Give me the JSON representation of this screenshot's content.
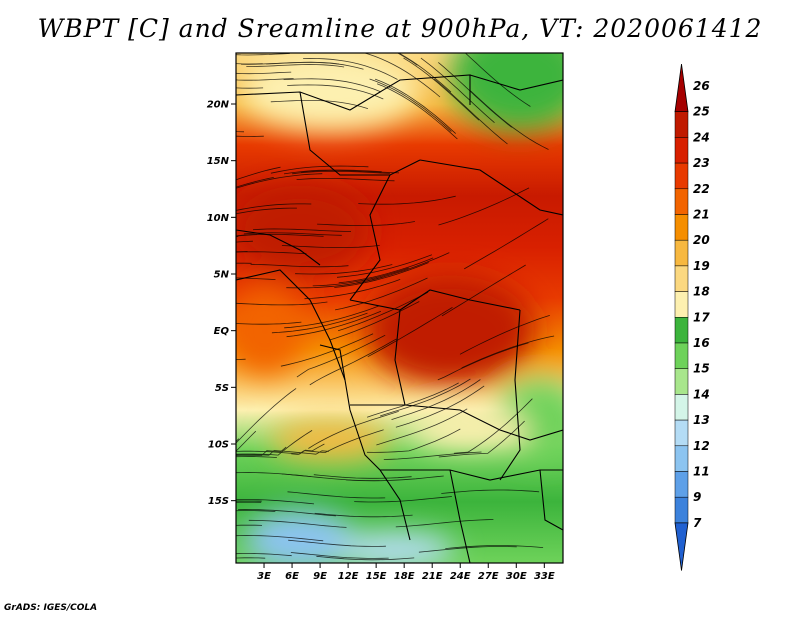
{
  "title": "WBPT [C] and Sreamline at 900hPa, VT: 2020061412",
  "credit": "GrADS: IGES/COLA",
  "map": {
    "lat_range": [
      -20.5,
      24.5
    ],
    "lon_range": [
      0,
      35
    ],
    "lat_ticks": [
      {
        "value": 20,
        "label": "20N"
      },
      {
        "value": 15,
        "label": "15N"
      },
      {
        "value": 10,
        "label": "10N"
      },
      {
        "value": 5,
        "label": "5N"
      },
      {
        "value": 0,
        "label": "EQ"
      },
      {
        "value": -5,
        "label": "5S"
      },
      {
        "value": -10,
        "label": "10S"
      },
      {
        "value": -15,
        "label": "15S"
      }
    ],
    "lon_ticks": [
      {
        "value": 3,
        "label": "3E"
      },
      {
        "value": 6,
        "label": "6E"
      },
      {
        "value": 9,
        "label": "9E"
      },
      {
        "value": 12,
        "label": "12E"
      },
      {
        "value": 15,
        "label": "15E"
      },
      {
        "value": 18,
        "label": "18E"
      },
      {
        "value": 21,
        "label": "21E"
      },
      {
        "value": 24,
        "label": "24E"
      },
      {
        "value": 27,
        "label": "27E"
      },
      {
        "value": 30,
        "label": "30E"
      },
      {
        "value": 33,
        "label": "33E"
      }
    ]
  },
  "colorbar": {
    "levels": [
      "26",
      "25",
      "24",
      "23",
      "22",
      "21",
      "20",
      "19",
      "18",
      "17",
      "16",
      "15",
      "14",
      "13",
      "12",
      "11",
      "9",
      "7"
    ],
    "colors": [
      "#a50000",
      "#c01a00",
      "#d82000",
      "#e83a00",
      "#f26400",
      "#f58e00",
      "#f7b840",
      "#fbd880",
      "#fdf0b0",
      "#3cb43c",
      "#6ed25a",
      "#a8e68c",
      "#d4f5e8",
      "#b4dcf5",
      "#8cc4f0",
      "#5ea0e8",
      "#3c82dc",
      "#2060d0"
    ]
  }
}
